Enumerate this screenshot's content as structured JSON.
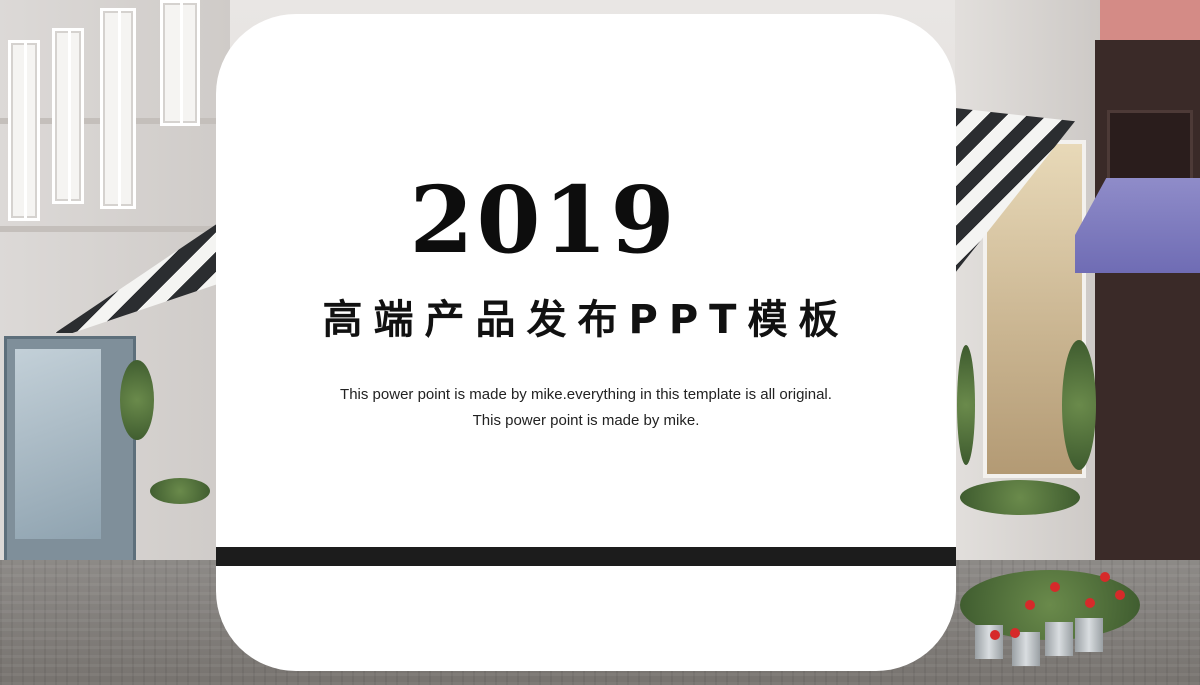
{
  "slide": {
    "year": "2019",
    "title": "高端产品发布PPT模板",
    "subtitle_line1": "This power point is made by mike.everything in this template is all original.",
    "subtitle_line2": "This power point is made by mike."
  },
  "colors": {
    "card_background": "#ffffff",
    "text": "#0d0d0d",
    "accent_bar": "#1c1c1c"
  }
}
